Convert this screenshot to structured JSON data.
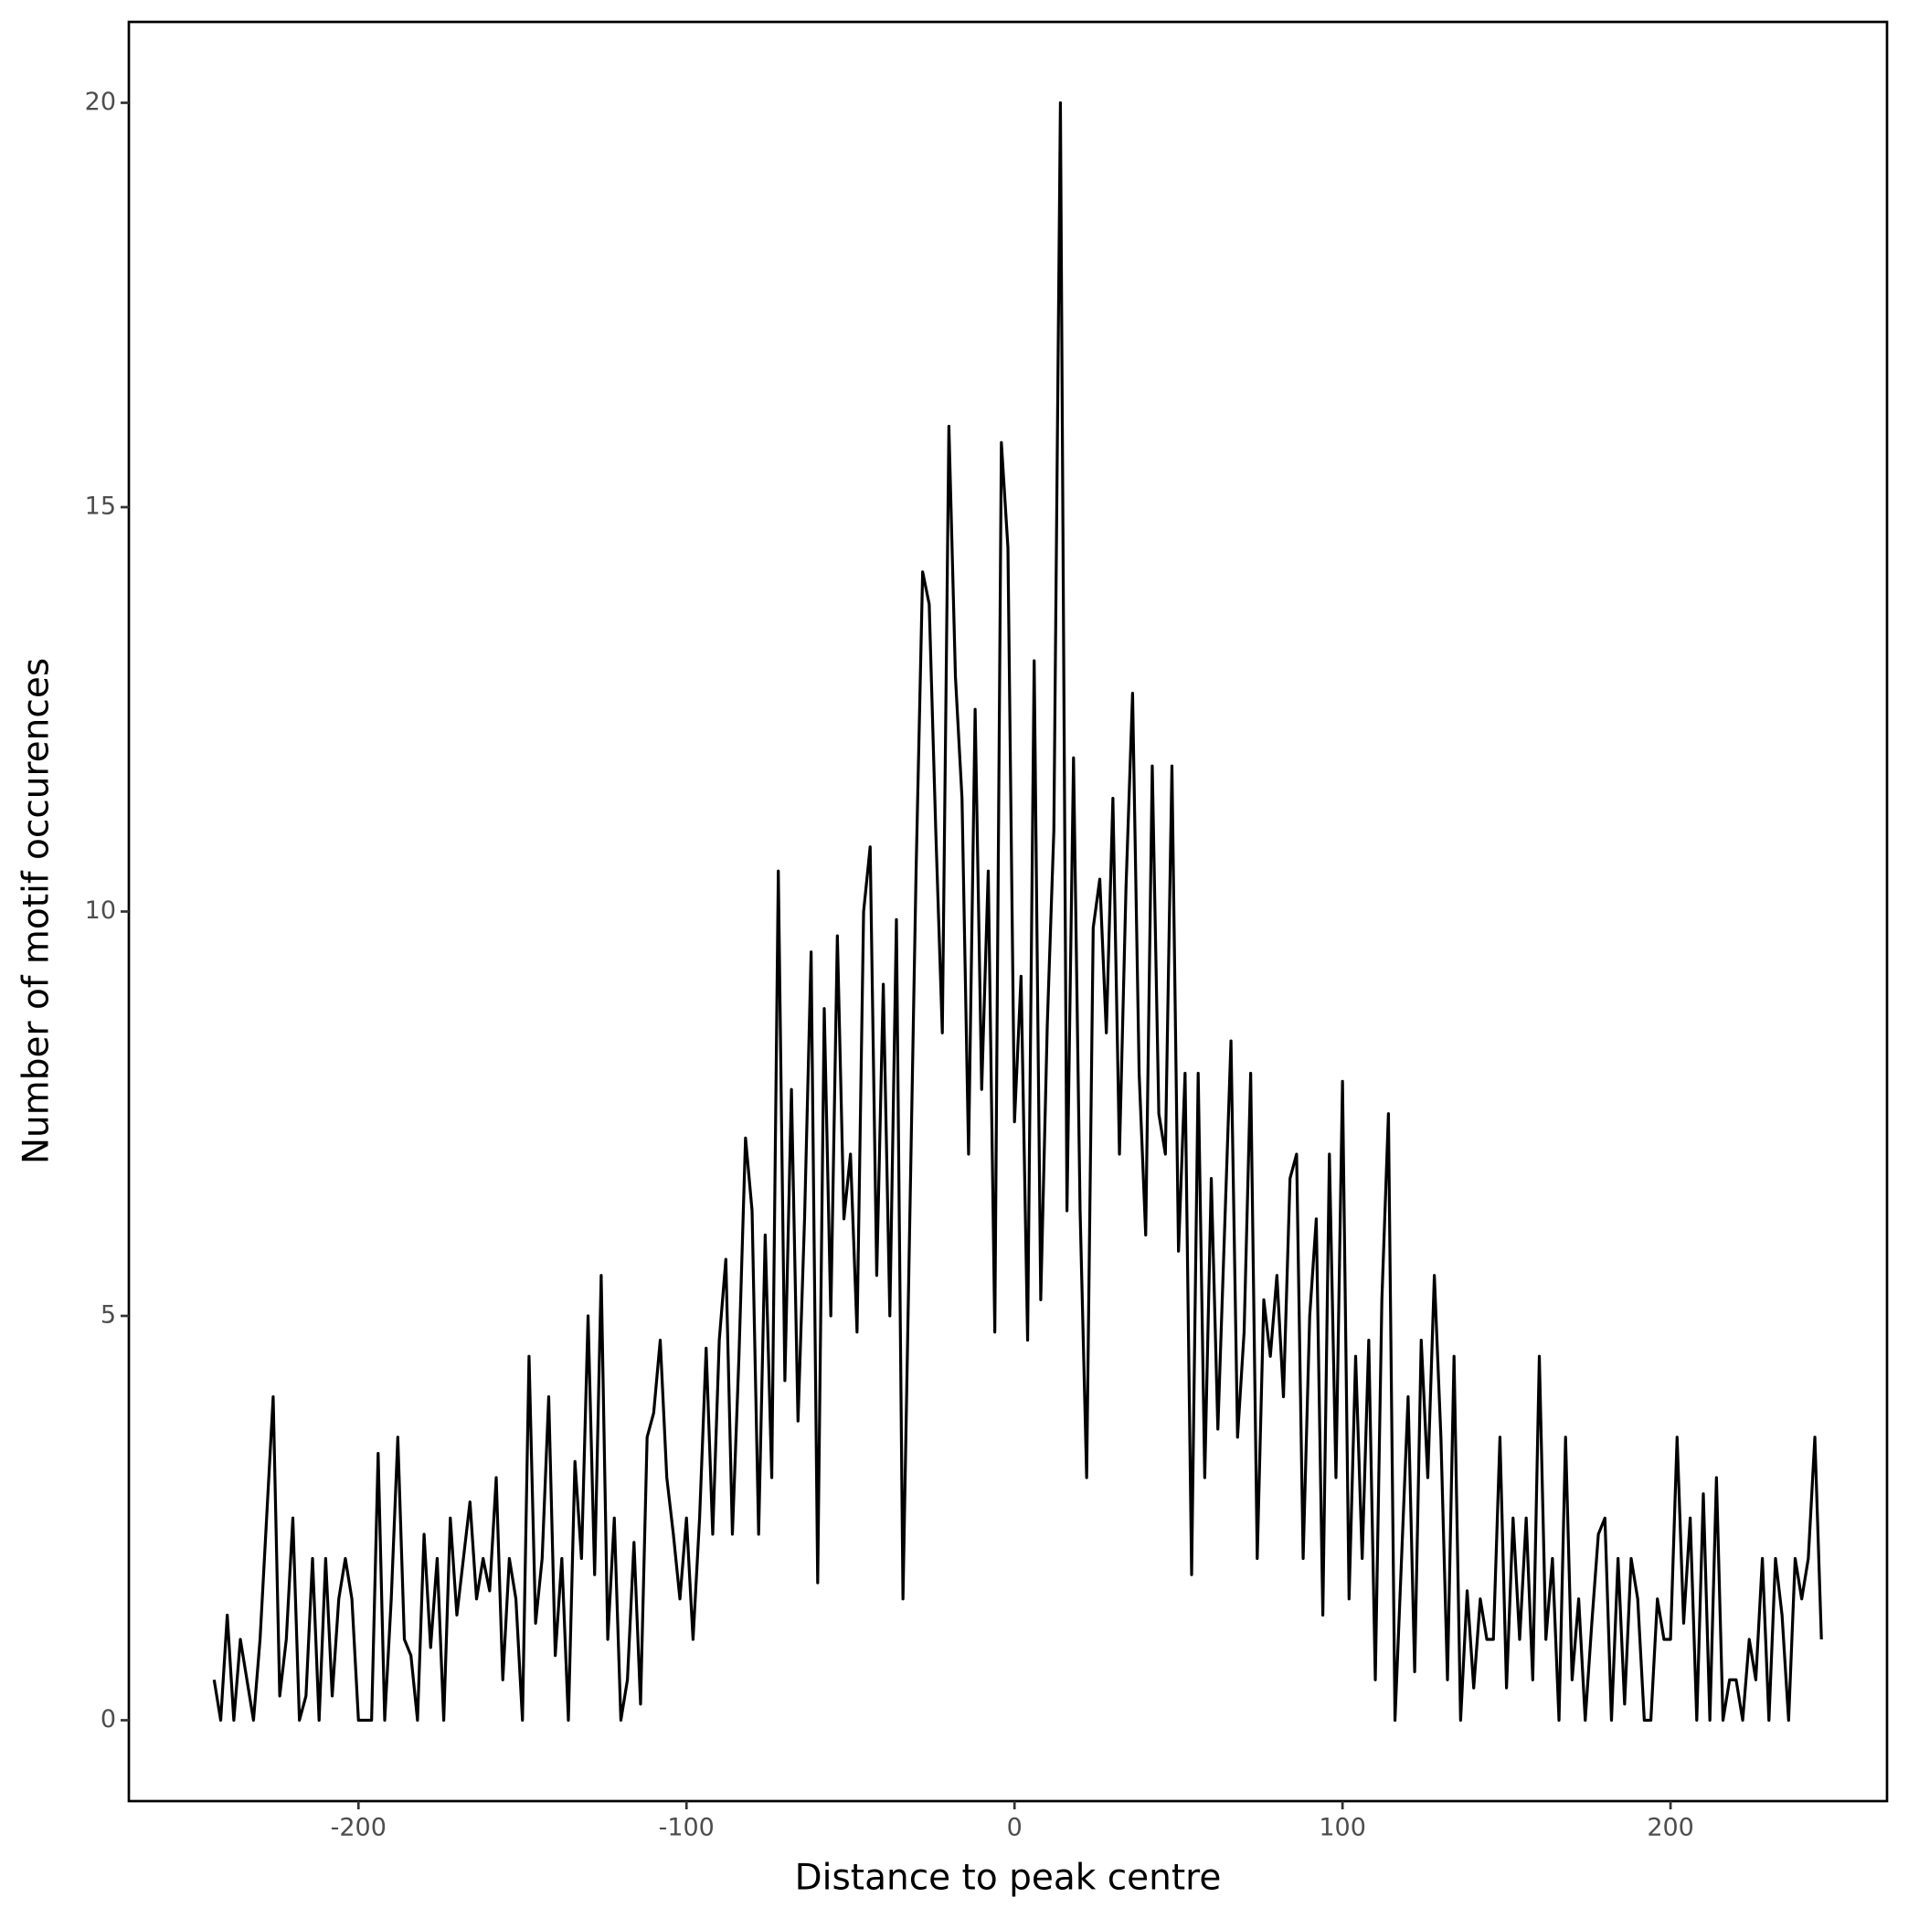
{
  "chart_data": {
    "type": "line",
    "xlabel": "Distance to peak centre",
    "ylabel": "Number of motif occurences",
    "xlim": [
      -270,
      266
    ],
    "ylim": [
      -1,
      21
    ],
    "xticks": [
      -200,
      -100,
      0,
      100,
      200
    ],
    "yticks": [
      0,
      5,
      10,
      15,
      20
    ],
    "grid": false,
    "series": [
      {
        "color": "#000000",
        "x": [
          -244,
          -242,
          -240,
          -238,
          -236,
          -234,
          -232,
          -230,
          -228,
          -226,
          -224,
          -222,
          -220,
          -218,
          -216,
          -214,
          -212,
          -210,
          -208,
          -206,
          -204,
          -202,
          -200,
          -198,
          -196,
          -194,
          -192,
          -190,
          -188,
          -186,
          -184,
          -182,
          -180,
          -178,
          -176,
          -174,
          -172,
          -170,
          -168,
          -166,
          -164,
          -162,
          -160,
          -158,
          -156,
          -154,
          -152,
          -150,
          -148,
          -146,
          -144,
          -142,
          -140,
          -138,
          -136,
          -134,
          -132,
          -130,
          -128,
          -126,
          -124,
          -122,
          -120,
          -118,
          -116,
          -114,
          -112,
          -110,
          -108,
          -106,
          -104,
          -102,
          -100,
          -98,
          -96,
          -94,
          -92,
          -90,
          -88,
          -86,
          -84,
          -82,
          -80,
          -78,
          -76,
          -74,
          -72,
          -70,
          -68,
          -66,
          -64,
          -62,
          -60,
          -58,
          -56,
          -54,
          -52,
          -50,
          -48,
          -46,
          -44,
          -42,
          -40,
          -38,
          -36,
          -34,
          -32,
          -30,
          -28,
          -26,
          -24,
          -22,
          -20,
          -18,
          -16,
          -14,
          -12,
          -10,
          -8,
          -6,
          -4,
          -2,
          0,
          2,
          4,
          6,
          8,
          10,
          12,
          14,
          16,
          18,
          20,
          22,
          24,
          26,
          28,
          30,
          32,
          34,
          36,
          38,
          40,
          42,
          44,
          46,
          48,
          50,
          52,
          54,
          56,
          58,
          60,
          62,
          64,
          66,
          68,
          70,
          72,
          74,
          76,
          78,
          80,
          82,
          84,
          86,
          88,
          90,
          92,
          94,
          96,
          98,
          100,
          102,
          104,
          106,
          108,
          110,
          112,
          114,
          116,
          118,
          120,
          122,
          124,
          126,
          128,
          130,
          132,
          134,
          136,
          138,
          140,
          142,
          144,
          146,
          148,
          150,
          152,
          154,
          156,
          158,
          160,
          162,
          164,
          166,
          168,
          170,
          172,
          174,
          176,
          178,
          180,
          182,
          184,
          186,
          188,
          190,
          192,
          194,
          196,
          198,
          200,
          202,
          204,
          206,
          208,
          210,
          212,
          214,
          216,
          218,
          220,
          222,
          224,
          226,
          228,
          230,
          232,
          234,
          236,
          238,
          240,
          242,
          244,
          246
        ],
        "values": [
          0.5,
          0,
          1.3,
          0,
          1,
          0.5,
          0,
          1,
          2.5,
          4,
          0.3,
          1,
          2.5,
          0,
          0.3,
          2,
          0,
          2,
          0.3,
          1.5,
          2,
          1.5,
          0,
          0,
          0,
          3.3,
          0,
          1.5,
          3.5,
          1,
          0.8,
          0,
          2.3,
          0.9,
          2,
          0,
          2.5,
          1.3,
          2,
          2.7,
          1.5,
          2,
          1.6,
          3,
          0.5,
          2,
          1.5,
          0,
          4.5,
          1.2,
          2,
          4,
          0.8,
          2,
          0,
          3.2,
          2,
          5,
          1.8,
          5.5,
          1,
          2.5,
          0,
          0.5,
          2.2,
          0.2,
          3.5,
          3.8,
          4.7,
          3,
          2.3,
          1.5,
          2.5,
          1,
          2.5,
          4.6,
          2.3,
          4.7,
          5.7,
          2.3,
          4.5,
          7.2,
          6.3,
          2.3,
          6,
          3,
          10.5,
          4.2,
          7.8,
          3.7,
          6.2,
          9.5,
          1.7,
          8.8,
          5,
          9.7,
          6.2,
          7,
          4.8,
          10,
          10.8,
          5.5,
          9.1,
          5,
          9.9,
          1.5,
          6,
          10.5,
          14.2,
          13.8,
          11,
          8.5,
          16,
          12.9,
          11.4,
          7,
          12.5,
          7.8,
          10.5,
          4.8,
          15.8,
          14.5,
          7.4,
          9.2,
          4.7,
          13.1,
          5.2,
          8.6,
          11,
          20,
          6.3,
          11.9,
          6.3,
          3,
          9.8,
          10.4,
          8.5,
          11.4,
          7,
          10.3,
          12.7,
          8,
          6,
          11.8,
          7.5,
          7,
          11.8,
          5.8,
          8,
          1.8,
          8,
          3,
          6.7,
          3.6,
          6,
          8.4,
          3.5,
          4.8,
          8,
          2,
          5.2,
          4.5,
          5.5,
          4,
          6.7,
          7,
          2,
          5,
          6.2,
          1.3,
          7,
          3,
          7.9,
          1.5,
          4.5,
          2,
          4.7,
          0.5,
          5.2,
          7.5,
          0,
          2,
          4,
          0.6,
          4.7,
          3,
          5.5,
          3.5,
          0.5,
          4.5,
          0,
          1.6,
          0.4,
          1.5,
          1,
          1,
          3.5,
          0.4,
          2.5,
          1,
          2.5,
          0.5,
          4.5,
          1,
          2,
          0,
          3.5,
          0.5,
          1.5,
          0,
          1.2,
          2.3,
          2.5,
          0,
          2,
          0.2,
          2,
          1.5,
          0,
          0,
          1.5,
          1,
          1,
          3.5,
          1.2,
          2.5,
          0,
          2.8,
          0,
          3,
          0,
          0.5,
          0.5,
          0,
          1,
          0.5,
          2,
          0,
          2,
          1.3,
          0,
          2,
          1.5,
          2,
          3.5,
          1
        ]
      }
    ]
  }
}
